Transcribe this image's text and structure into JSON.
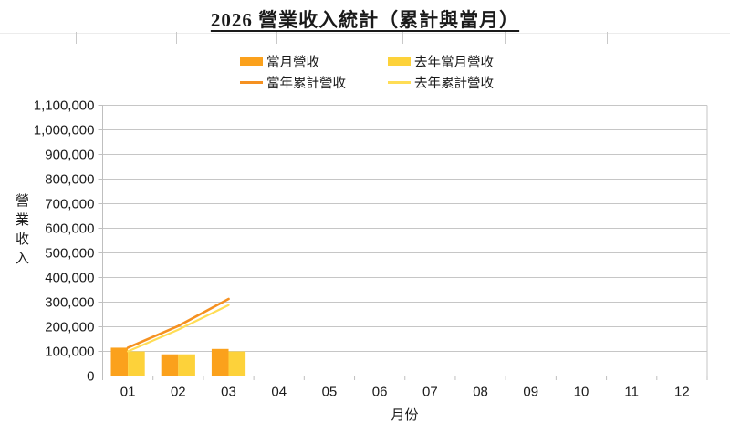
{
  "title": {
    "text": "2026 營業收入統計（累計與當月）"
  },
  "axes": {
    "x_title": "月份",
    "y_title": "營業收入"
  },
  "colors": {
    "bar_current": "#FBA11C",
    "bar_last_year": "#FDD23A",
    "line_current_cum": "#F59121",
    "line_last_year_cum": "#FFDD55",
    "gridline": "#C6C6C6",
    "axis_line": "#BFBFBF",
    "text": "#1A1A1A"
  },
  "chart_data": {
    "type": "bar",
    "subtype": "combo-bar-line",
    "title": "2026 營業收入統計（累計與當月）",
    "categories": [
      "01",
      "02",
      "03",
      "04",
      "05",
      "06",
      "07",
      "08",
      "09",
      "10",
      "11",
      "12"
    ],
    "series": [
      {
        "name": "當月營收",
        "type": "bar",
        "color": "#FBA11C",
        "values": [
          115000,
          88000,
          110000,
          null,
          null,
          null,
          null,
          null,
          null,
          null,
          null,
          null
        ]
      },
      {
        "name": "去年當月營收",
        "type": "bar",
        "color": "#FDD23A",
        "values": [
          100000,
          88000,
          100000,
          null,
          null,
          null,
          null,
          null,
          null,
          null,
          null,
          null
        ]
      },
      {
        "name": "當年累計營收",
        "type": "line",
        "color": "#F59121",
        "values": [
          115000,
          203000,
          313000,
          null,
          null,
          null,
          null,
          null,
          null,
          null,
          null,
          null
        ]
      },
      {
        "name": "去年累計營收",
        "type": "line",
        "color": "#FFDD55",
        "values": [
          100000,
          188000,
          288000,
          null,
          null,
          null,
          null,
          null,
          null,
          null,
          null,
          null
        ]
      }
    ],
    "xlabel": "月份",
    "ylabel": "營業收入",
    "ylim": [
      0,
      1100000
    ],
    "ytick_step": 100000,
    "ytick_labels": [
      "0",
      "100,000",
      "200,000",
      "300,000",
      "400,000",
      "500,000",
      "600,000",
      "700,000",
      "800,000",
      "900,000",
      "1,000,000",
      "1,100,000"
    ],
    "grid": true,
    "legend_position": "top-center",
    "legend_rows": [
      [
        0,
        1
      ],
      [
        2,
        3
      ]
    ]
  }
}
